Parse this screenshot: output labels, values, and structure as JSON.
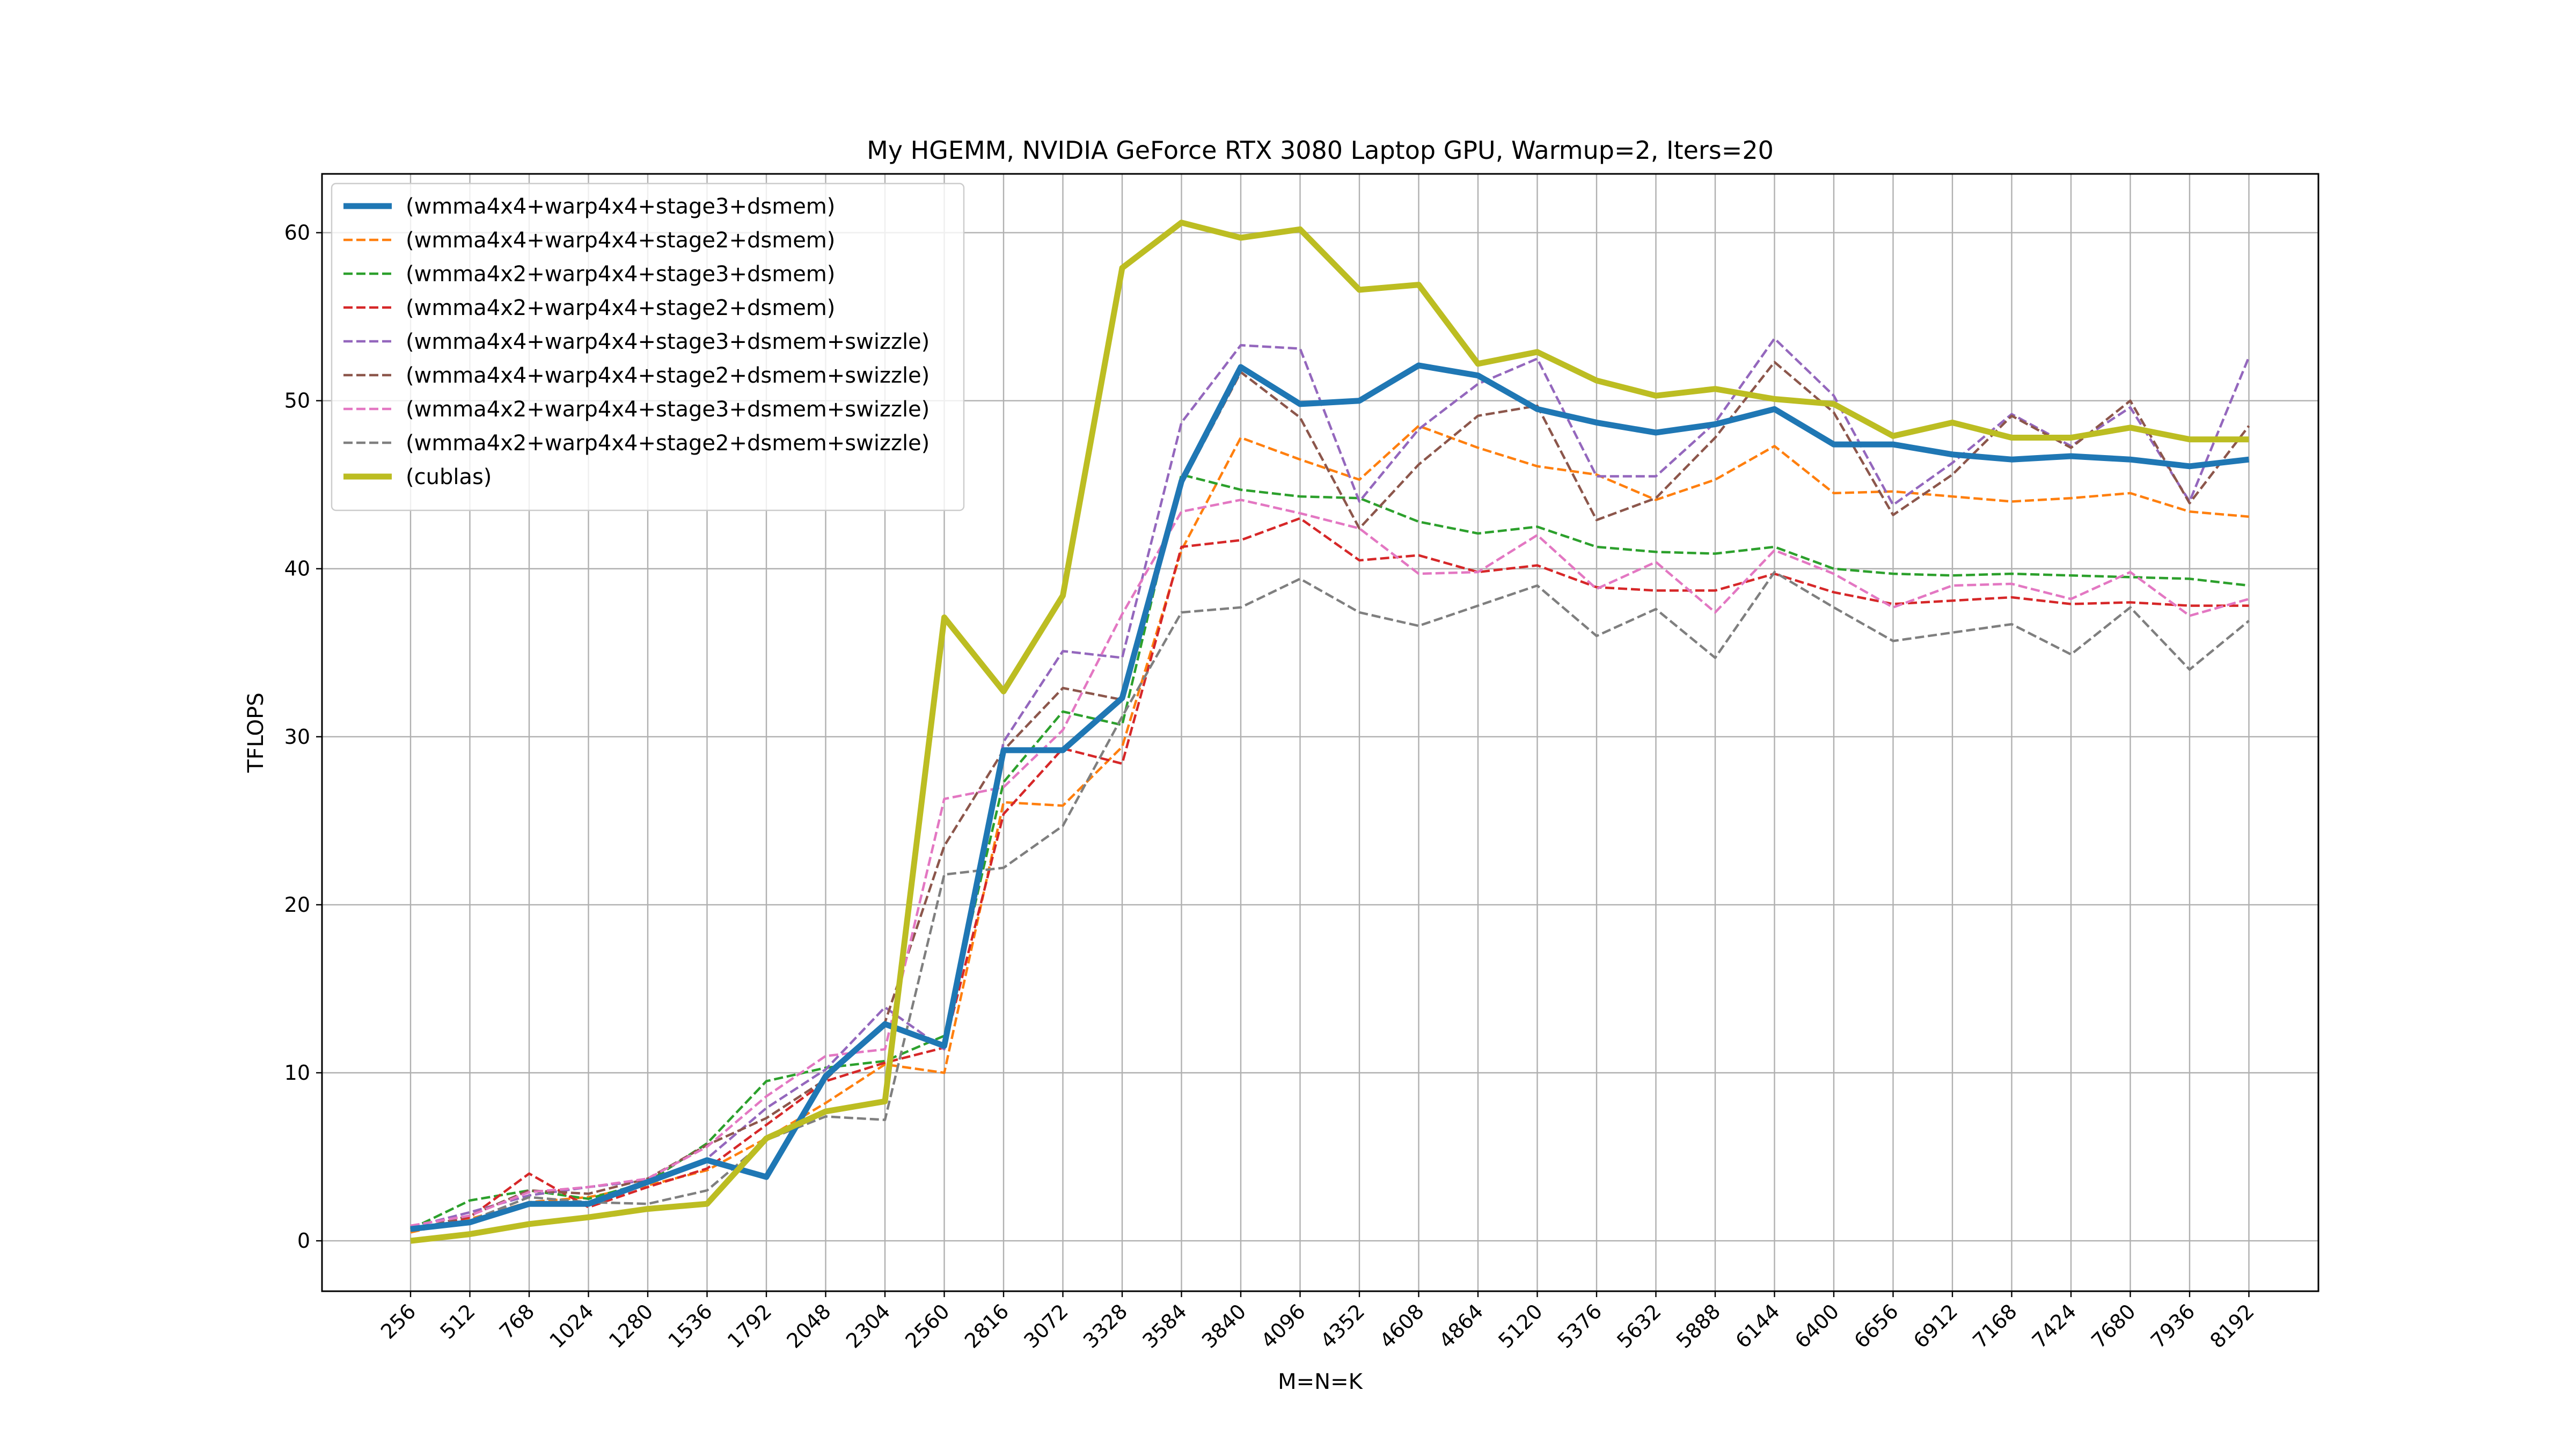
{
  "chart_data": {
    "type": "line",
    "title": "My HGEMM, NVIDIA GeForce RTX 3080 Laptop GPU, Warmup=2, Iters=20",
    "xlabel": "M=N=K",
    "ylabel": "TFLOPS",
    "ylim": [
      -3,
      63.5
    ],
    "yticks": [
      0,
      10,
      20,
      30,
      40,
      50,
      60
    ],
    "grid": true,
    "legend_position": "top-left",
    "categories": [
      "256",
      "512",
      "768",
      "1024",
      "1280",
      "1536",
      "1792",
      "2048",
      "2304",
      "2560",
      "2816",
      "3072",
      "3328",
      "3584",
      "3840",
      "4096",
      "4352",
      "4608",
      "4864",
      "5120",
      "5376",
      "5632",
      "5888",
      "6144",
      "6400",
      "6656",
      "6912",
      "7168",
      "7424",
      "7680",
      "7936",
      "8192"
    ],
    "series": [
      {
        "name": "(wmma4x4+warp4x4+stage3+dsmem)",
        "color": "#1f77b4",
        "style": "solid-thick",
        "values": [
          0.7,
          1.1,
          2.2,
          2.2,
          3.5,
          4.8,
          3.8,
          9.8,
          12.9,
          11.6,
          29.2,
          29.2,
          32.3,
          45.2,
          52.0,
          49.8,
          50.0,
          52.1,
          51.5,
          49.5,
          48.7,
          48.1,
          48.6,
          49.5,
          47.4,
          47.4,
          46.8,
          46.5,
          46.7,
          46.5,
          46.1,
          46.5
        ]
      },
      {
        "name": "(wmma4x4+warp4x4+stage2+dsmem)",
        "color": "#ff7f0e",
        "style": "dashed",
        "values": [
          0.5,
          1.3,
          2.3,
          2.6,
          3.3,
          4.2,
          6.1,
          8.2,
          10.5,
          10.0,
          26.1,
          25.9,
          29.4,
          41.1,
          47.8,
          46.5,
          45.3,
          48.5,
          47.2,
          46.1,
          45.6,
          44.1,
          45.3,
          47.3,
          44.5,
          44.6,
          44.3,
          44.0,
          44.2,
          44.5,
          43.4,
          43.1
        ]
      },
      {
        "name": "(wmma4x2+warp4x4+stage3+dsmem)",
        "color": "#2ca02c",
        "style": "dashed",
        "values": [
          0.7,
          2.4,
          3.0,
          2.5,
          3.5,
          5.8,
          9.5,
          10.3,
          10.7,
          12.2,
          27.3,
          31.5,
          30.7,
          45.6,
          44.7,
          44.3,
          44.2,
          42.8,
          42.1,
          42.5,
          41.3,
          41.0,
          40.9,
          41.3,
          40.0,
          39.7,
          39.6,
          39.7,
          39.6,
          39.5,
          39.4,
          39.0
        ]
      },
      {
        "name": "(wmma4x2+warp4x4+stage2+dsmem)",
        "color": "#d62728",
        "style": "dashed",
        "values": [
          0.6,
          1.4,
          4.0,
          2.0,
          3.2,
          4.3,
          6.9,
          9.5,
          10.6,
          11.5,
          25.4,
          29.3,
          28.4,
          41.3,
          41.7,
          43.0,
          40.5,
          40.8,
          39.8,
          40.2,
          38.9,
          38.7,
          38.7,
          39.7,
          38.6,
          37.9,
          38.1,
          38.3,
          37.9,
          38.0,
          37.8,
          37.8
        ]
      },
      {
        "name": "(wmma4x4+warp4x4+stage3+dsmem+swizzle)",
        "color": "#9467bd",
        "style": "dashed",
        "values": [
          0.8,
          1.7,
          2.7,
          3.2,
          3.6,
          4.9,
          7.9,
          10.2,
          13.9,
          11.4,
          29.7,
          35.1,
          34.7,
          48.7,
          53.3,
          53.1,
          44.0,
          48.3,
          51.0,
          52.5,
          45.5,
          45.5,
          48.7,
          53.7,
          50.3,
          43.8,
          46.3,
          49.2,
          47.3,
          49.6,
          44.0,
          52.6
        ]
      },
      {
        "name": "(wmma4x4+warp4x4+stage2+dsmem+swizzle)",
        "color": "#8c564b",
        "style": "dashed",
        "values": [
          0.6,
          1.5,
          3.0,
          2.8,
          3.7,
          5.7,
          7.3,
          9.6,
          13.0,
          23.5,
          29.2,
          32.9,
          32.2,
          45.0,
          51.7,
          49.0,
          42.4,
          46.2,
          49.1,
          49.7,
          42.9,
          44.2,
          47.8,
          52.3,
          49.3,
          43.2,
          45.6,
          49.1,
          47.2,
          50.0,
          43.9,
          48.5
        ]
      },
      {
        "name": "(wmma4x2+warp4x4+stage3+dsmem+swizzle)",
        "color": "#e377c2",
        "style": "dashed",
        "values": [
          0.9,
          1.5,
          2.9,
          3.2,
          3.7,
          5.6,
          8.6,
          11.0,
          11.4,
          26.3,
          27.0,
          30.4,
          37.3,
          43.4,
          44.1,
          43.3,
          42.4,
          39.7,
          39.8,
          42.0,
          38.8,
          40.4,
          37.4,
          41.1,
          39.7,
          37.7,
          39.0,
          39.1,
          38.2,
          39.8,
          37.2,
          38.2
        ]
      },
      {
        "name": "(wmma4x2+warp4x4+stage2+dsmem+swizzle)",
        "color": "#7f7f7f",
        "style": "dashed",
        "values": [
          0.6,
          1.2,
          2.6,
          2.3,
          2.2,
          3.0,
          6.0,
          7.4,
          7.2,
          21.8,
          22.2,
          24.7,
          31.2,
          37.4,
          37.7,
          39.4,
          37.4,
          36.6,
          37.8,
          39.0,
          36.0,
          37.6,
          34.7,
          39.8,
          37.7,
          35.7,
          36.2,
          36.7,
          34.9,
          37.7,
          34.0,
          36.9
        ]
      },
      {
        "name": "(cublas)",
        "color": "#bcbd22",
        "style": "solid-thick",
        "values": [
          0.0,
          0.4,
          1.0,
          1.4,
          1.9,
          2.2,
          6.1,
          7.7,
          8.3,
          37.1,
          32.7,
          38.4,
          57.9,
          60.6,
          59.7,
          60.2,
          56.6,
          56.9,
          52.2,
          52.9,
          51.2,
          50.3,
          50.7,
          50.1,
          49.8,
          47.9,
          48.7,
          47.8,
          47.8,
          48.4,
          47.7,
          47.7
        ]
      }
    ]
  }
}
